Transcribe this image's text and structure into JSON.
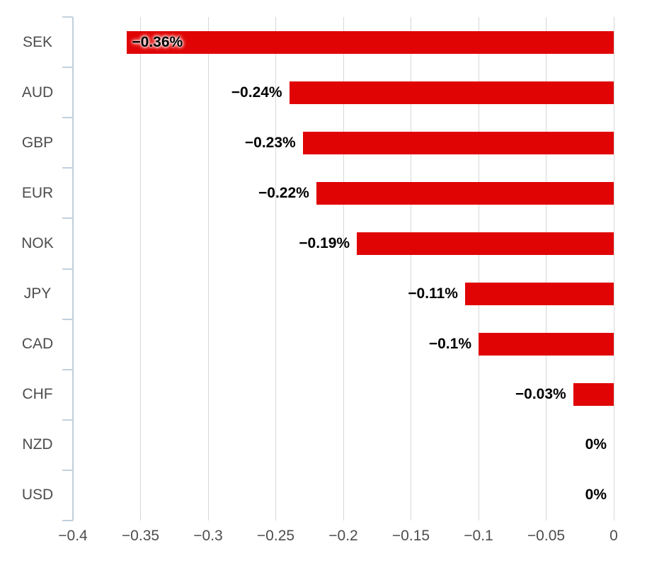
{
  "chart_data": {
    "type": "bar",
    "orientation": "horizontal",
    "title": "",
    "xlabel": "",
    "ylabel": "",
    "categories": [
      "SEK",
      "AUD",
      "GBP",
      "EUR",
      "NOK",
      "JPY",
      "CAD",
      "CHF",
      "NZD",
      "USD"
    ],
    "values": [
      -0.36,
      -0.24,
      -0.23,
      -0.22,
      -0.19,
      -0.11,
      -0.1,
      -0.03,
      0,
      0
    ],
    "value_labels": [
      "−0.36%",
      "−0.24%",
      "−0.23%",
      "−0.22%",
      "−0.19%",
      "−0.11%",
      "−0.1%",
      "−0.03%",
      "0%",
      "0%"
    ],
    "xlim": [
      -0.4,
      0
    ],
    "x_ticks": [
      -0.4,
      -0.35,
      -0.3,
      -0.25,
      -0.2,
      -0.15,
      -0.1,
      -0.05,
      0
    ],
    "x_tick_labels": [
      "−0.4",
      "−0.35",
      "−0.3",
      "−0.25",
      "−0.2",
      "−0.15",
      "−0.1",
      "−0.05",
      "0"
    ],
    "grid": true,
    "legend": "none",
    "colors": {
      "bar": "#e00404",
      "axis_line": "#c2d0de",
      "gridline": "#d7d7d7",
      "tick_label": "#4d4d4d",
      "category_label": "#4d4d4d",
      "value_label": "#000000",
      "background": "#ffffff"
    }
  }
}
